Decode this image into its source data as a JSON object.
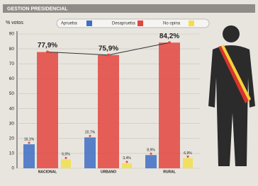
{
  "chart_data": {
    "type": "bar",
    "title": "GESTION PRESIDENCIAL",
    "y_label": "% votos",
    "categories": [
      "NACIONAL",
      "URBANO",
      "RURAL"
    ],
    "series": [
      {
        "name": "Aprueba",
        "color": "#3d6fc6",
        "values": [
          16.1,
          20.7,
          8.9
        ],
        "value_labels": [
          "16,1%",
          "20,7%",
          "8,9%"
        ]
      },
      {
        "name": "Desaprueba",
        "color": "#e3463f",
        "values": [
          77.9,
          75.9,
          84.2
        ],
        "value_labels": [
          "77,9%",
          "75,9%",
          "84,2%"
        ],
        "overlay_line": true
      },
      {
        "name": "No opina",
        "color": "#f1df4c",
        "values": [
          6.0,
          3.4,
          6.9
        ],
        "value_labels": [
          "6,0%",
          "3,4%",
          "6,9%"
        ]
      }
    ],
    "ylim": [
      0,
      90
    ],
    "yticks": [
      0,
      10,
      20,
      30,
      40,
      50,
      60,
      70,
      80,
      90
    ],
    "grid": true
  }
}
